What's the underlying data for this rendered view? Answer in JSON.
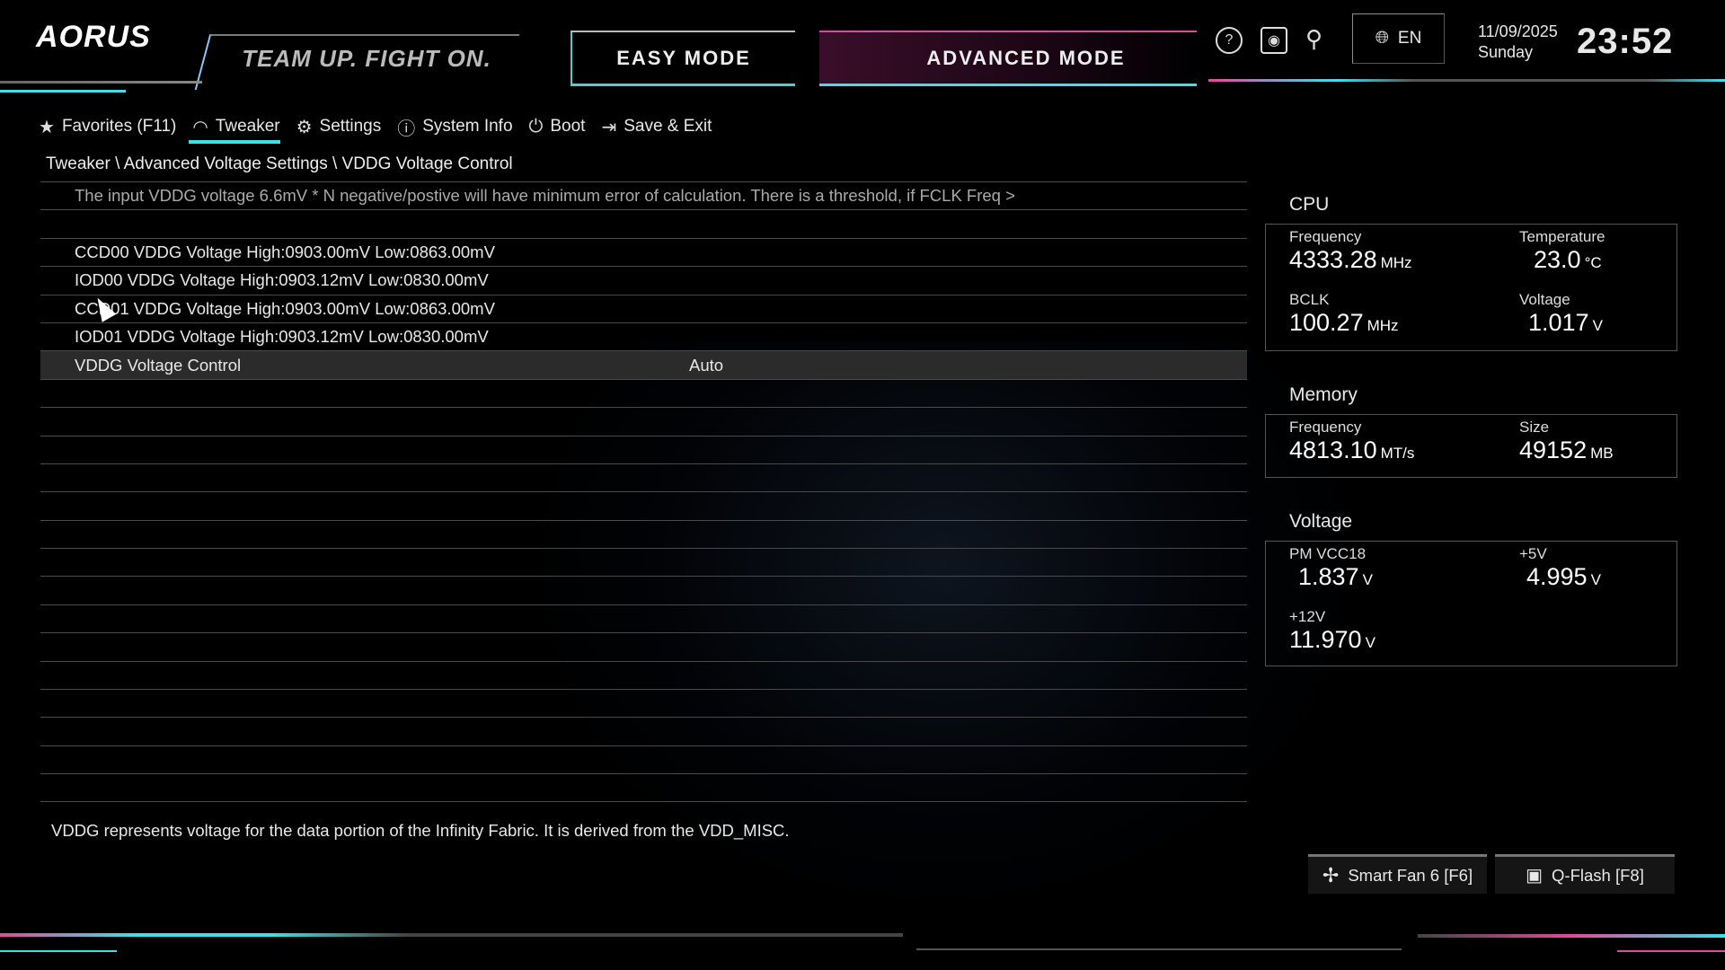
{
  "header": {
    "logo": "AORUS",
    "slogan": "TEAM UP. FIGHT ON.",
    "easy_mode": "EASY MODE",
    "advanced_mode": "ADVANCED MODE",
    "language": "EN",
    "date": "11/09/2025",
    "day": "Sunday",
    "time": "23:52"
  },
  "nav": {
    "items": [
      {
        "label": "Favorites (F11)",
        "icon": "star-icon"
      },
      {
        "label": "Tweaker",
        "icon": "speedometer-icon",
        "active": true
      },
      {
        "label": "Settings",
        "icon": "gear-icon"
      },
      {
        "label": "System Info",
        "icon": "info-icon"
      },
      {
        "label": "Boot",
        "icon": "power-icon"
      },
      {
        "label": "Save & Exit",
        "icon": "exit-icon"
      }
    ]
  },
  "breadcrumb": "Tweaker \\ Advanced Voltage Settings \\ VDDG Voltage Control",
  "list": {
    "rows": [
      {
        "label": "The input VDDG voltage 6.6mV * N negative/postive will have minimum error of calculation. There is a threshold, if FCLK Freq >",
        "value": ""
      },
      {
        "label": "",
        "value": ""
      },
      {
        "label": "CCD00 VDDG Voltage High:0903.00mV Low:0863.00mV",
        "value": ""
      },
      {
        "label": "IOD00 VDDG Voltage High:0903.12mV Low:0830.00mV",
        "value": ""
      },
      {
        "label": "CCD01 VDDG Voltage High:0903.00mV Low:0863.00mV",
        "value": ""
      },
      {
        "label": "IOD01 VDDG Voltage High:0903.12mV Low:0830.00mV",
        "value": ""
      },
      {
        "label": "VDDG Voltage Control",
        "value": "Auto"
      }
    ]
  },
  "help": "VDDG represents voltage for the data portion of the Infinity Fabric. It is derived from the VDD_MISC.",
  "cpu": {
    "title": "CPU",
    "freq_label": "Frequency",
    "freq": "4333.28",
    "freq_unit": "MHz",
    "temp_label": "Temperature",
    "temp": "23.0",
    "temp_unit": "°C",
    "bclk_label": "BCLK",
    "bclk": "100.27",
    "bclk_unit": "MHz",
    "volt_label": "Voltage",
    "volt": "1.017",
    "volt_unit": "V"
  },
  "memory": {
    "title": "Memory",
    "freq_label": "Frequency",
    "freq": "4813.10",
    "freq_unit": "MT/s",
    "size_label": "Size",
    "size": "49152",
    "size_unit": "MB"
  },
  "voltage": {
    "title": "Voltage",
    "vcc18_label": "PM VCC18",
    "vcc18": "1.837",
    "p5_label": "+5V",
    "p5": "4.995",
    "p12_label": "+12V",
    "p12": "11.970",
    "unit": "V"
  },
  "buttons": {
    "smart_fan": "Smart Fan 6 [F6]",
    "qflash": "Q-Flash [F8]"
  },
  "colors": {
    "accent_cyan": "#3ee0e8",
    "accent_pink": "#e04a9a"
  }
}
